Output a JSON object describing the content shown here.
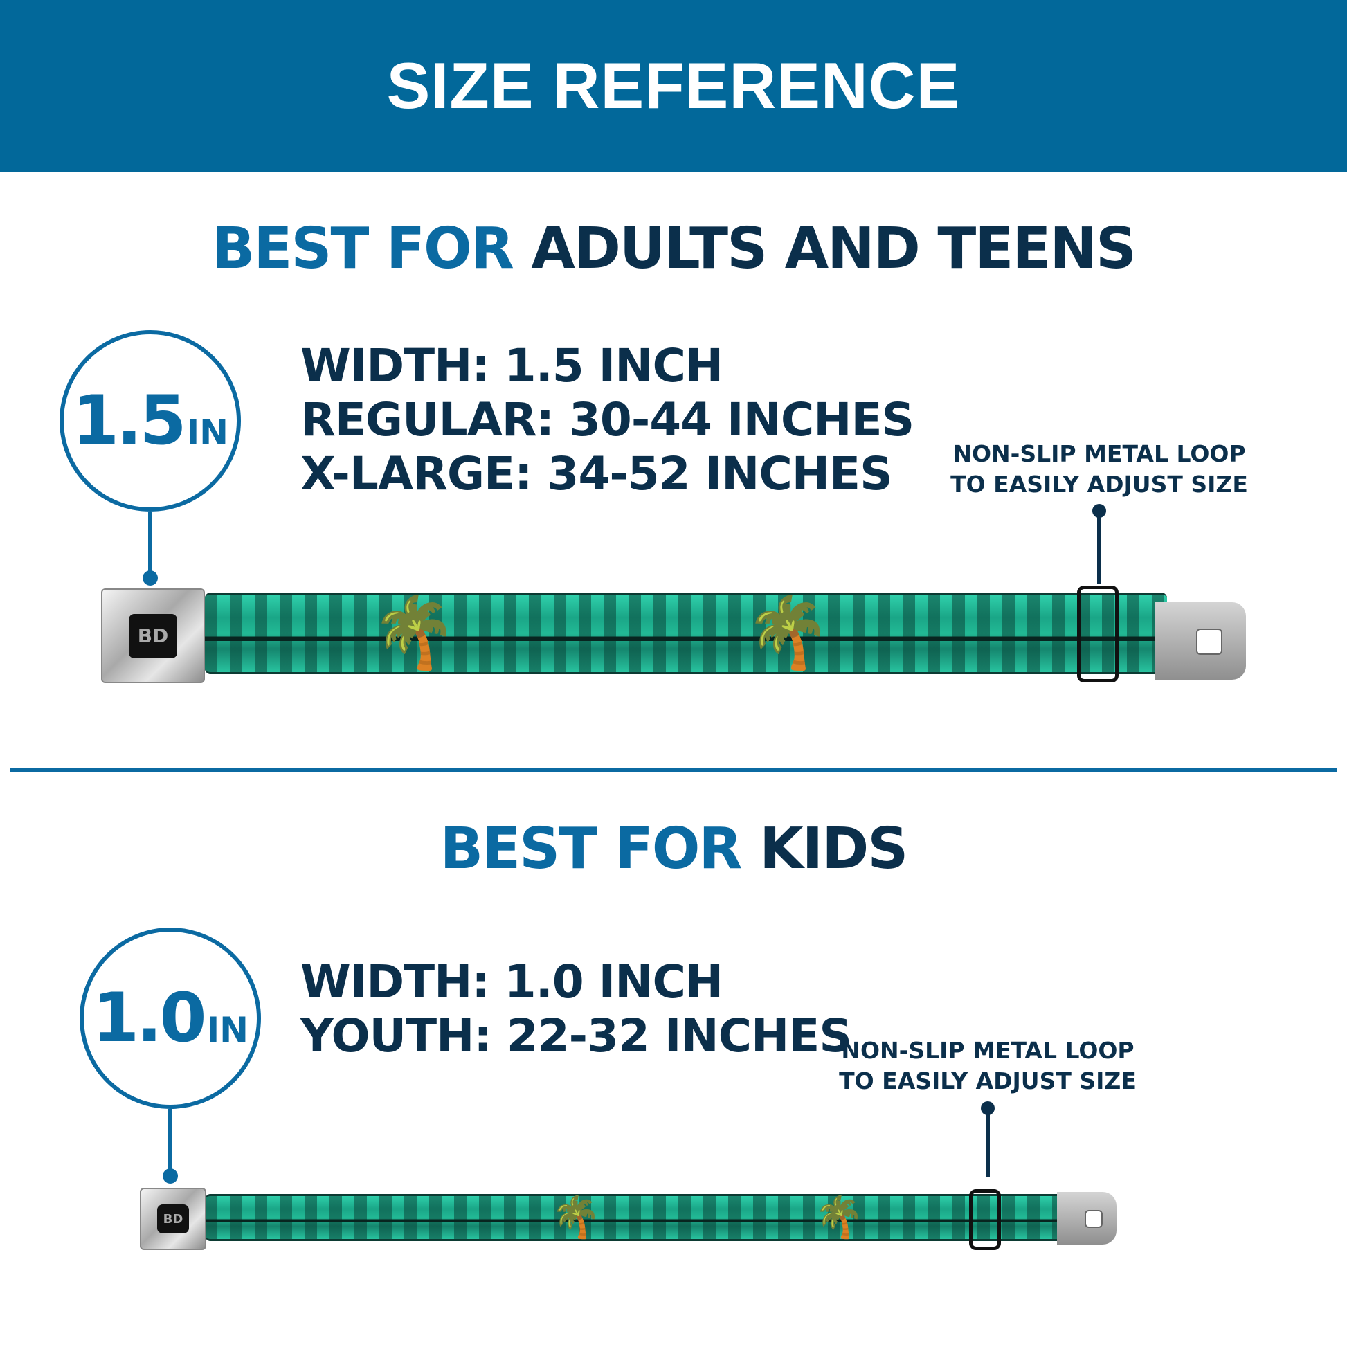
{
  "header": {
    "title": "SIZE REFERENCE"
  },
  "adults": {
    "title_prefix": "BEST FOR",
    "title_suffix": "ADULTS AND TEENS",
    "badge_number": "1.5",
    "badge_unit": "IN",
    "specs": [
      "WIDTH: 1.5 INCH",
      "REGULAR: 30-44 INCHES",
      "X-LARGE: 34-52 INCHES"
    ],
    "loop_label": [
      "NON-SLIP METAL LOOP",
      "TO EASILY ADJUST SIZE"
    ]
  },
  "kids": {
    "title_prefix": "BEST FOR",
    "title_suffix": "KIDS",
    "badge_number": "1.0",
    "badge_unit": "IN",
    "specs": [
      "WIDTH: 1.0 INCH",
      "YOUTH: 22-32 INCHES"
    ],
    "loop_label": [
      "NON-SLIP METAL LOOP",
      "TO EASILY ADJUST SIZE"
    ]
  },
  "buckle_logo": "BD",
  "colors": {
    "header": "#02689a",
    "accent_blue": "#0b6aa2",
    "navy": "#0b2f4b",
    "strap_green": "#22b995"
  }
}
